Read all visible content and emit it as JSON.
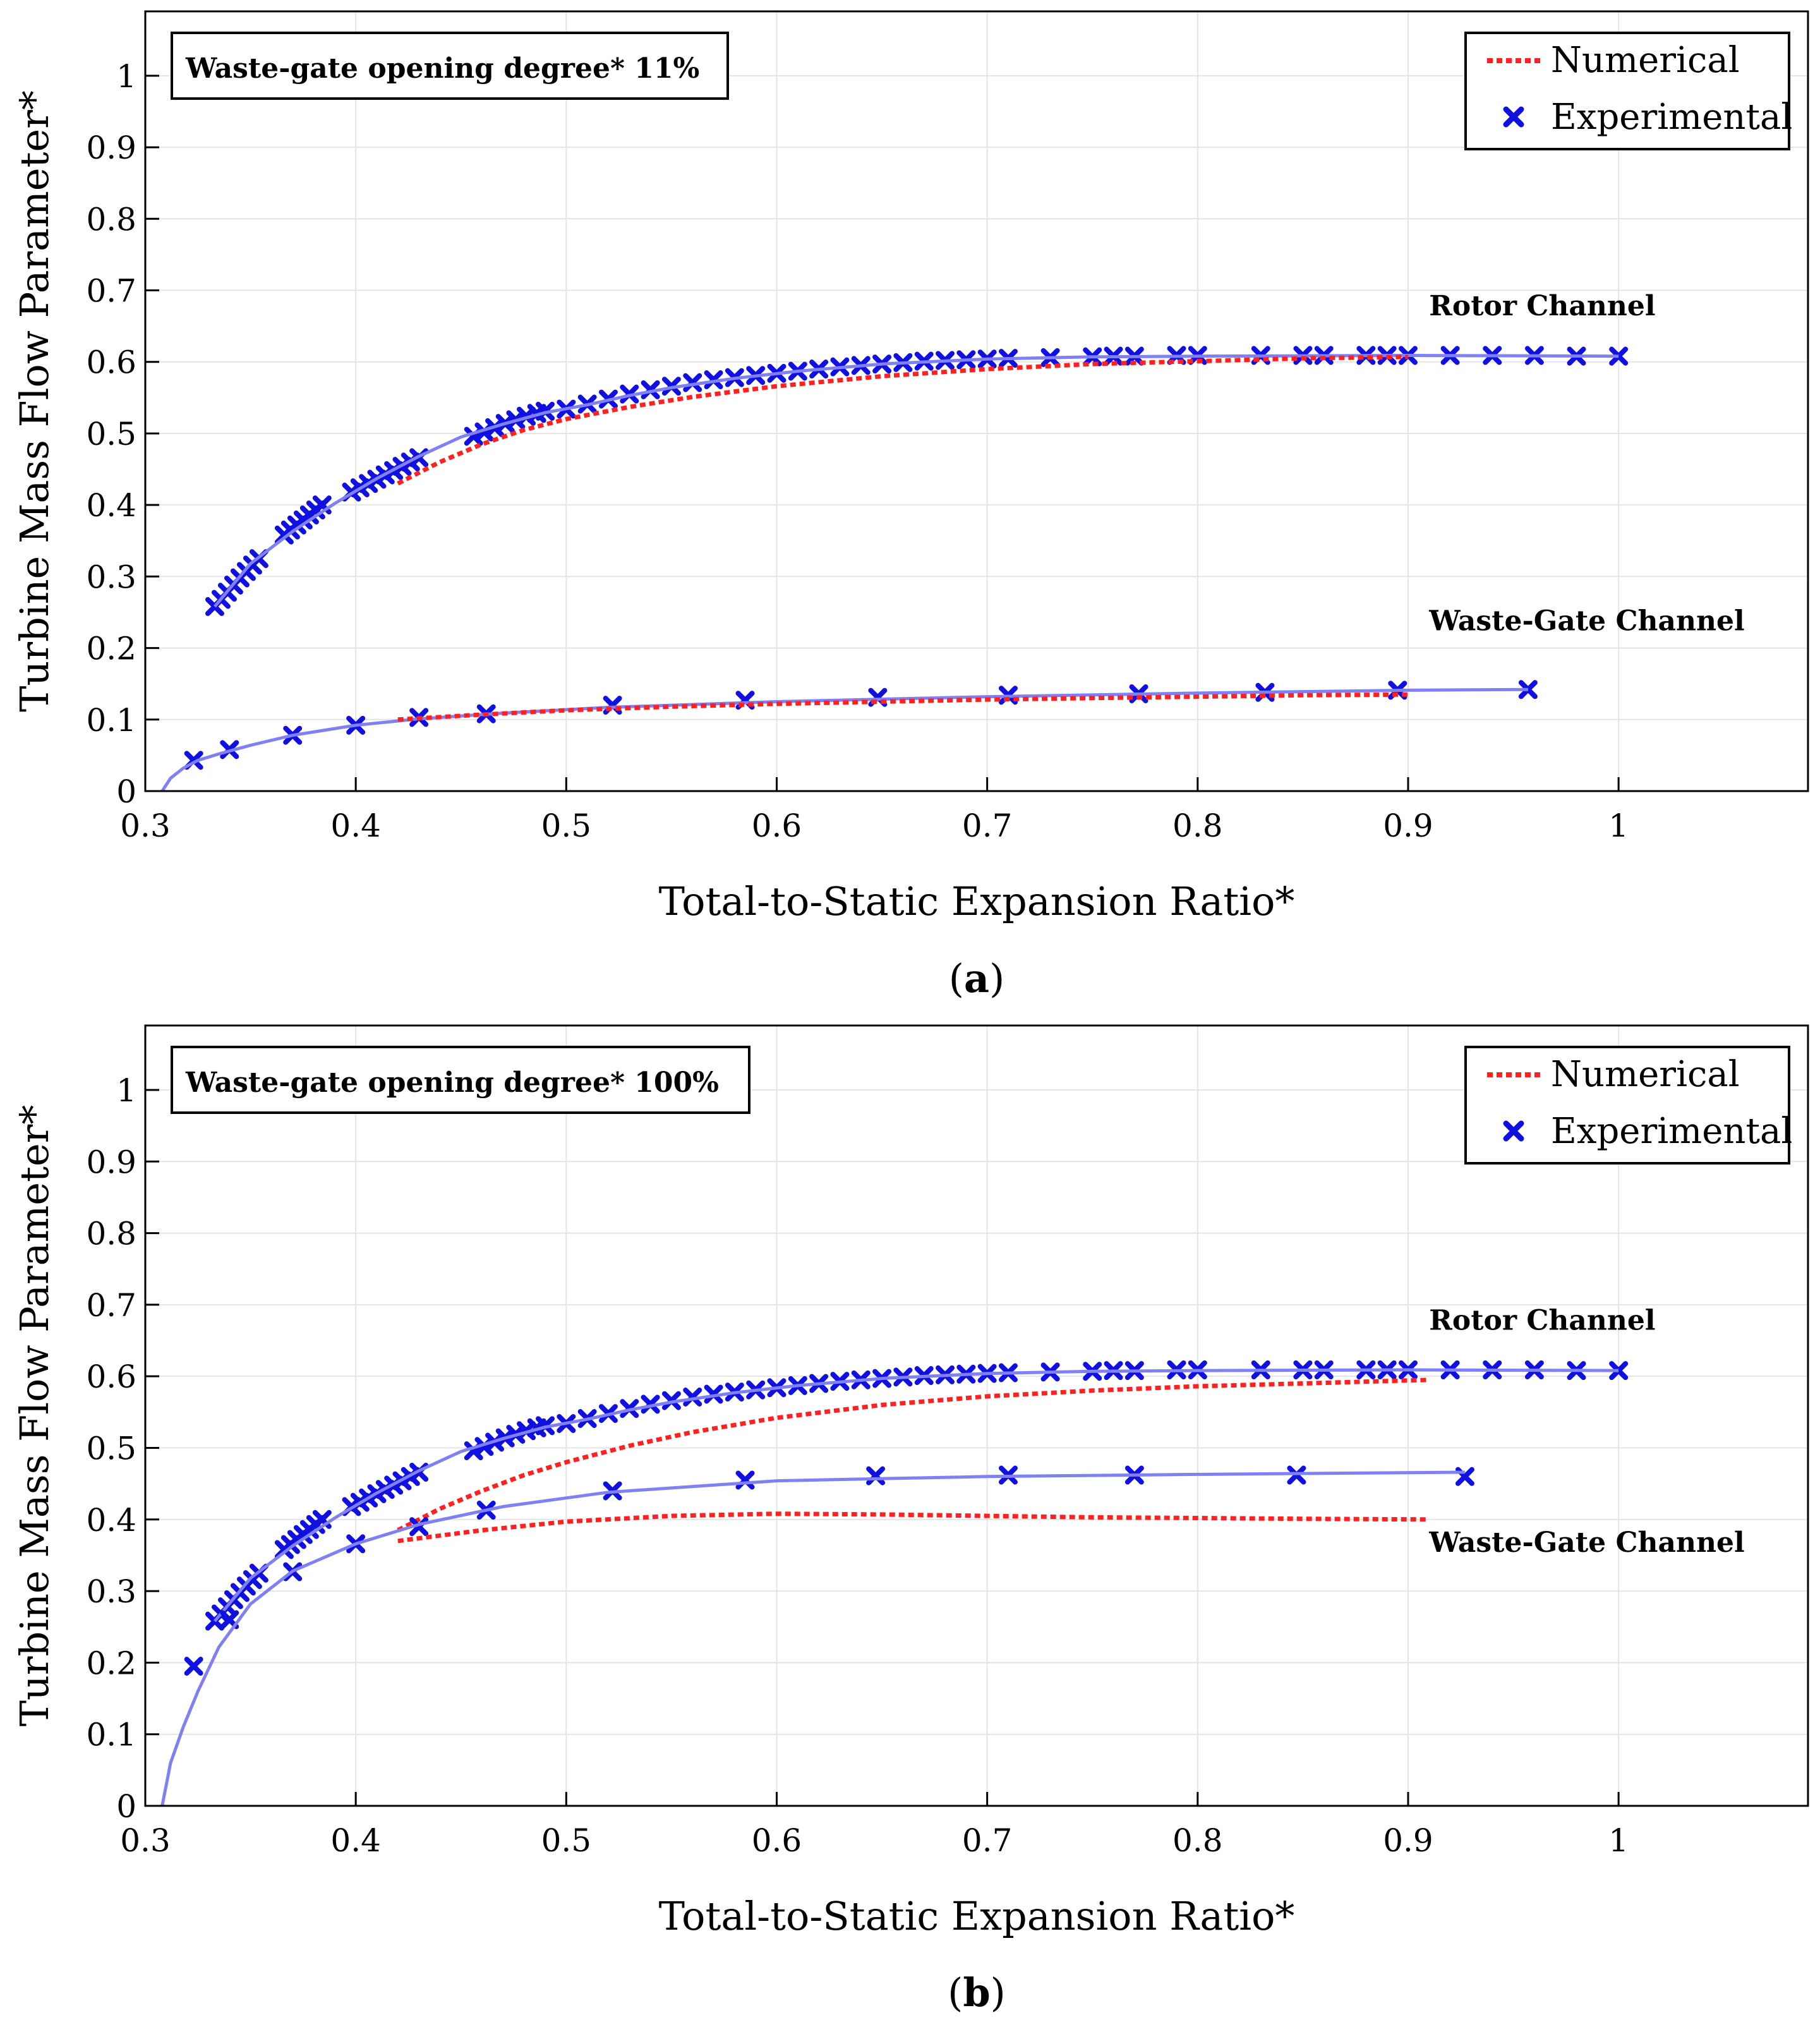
{
  "chart_data": [
    {
      "type": "line",
      "panel": "a",
      "caption": [
        "(",
        "a",
        ")"
      ],
      "annotation_box": "Waste-gate opening degree* 11%",
      "xlabel": "Total-to-Static Expansion Ratio*",
      "ylabel": "Turbine Mass Flow Parameter*",
      "xlim": [
        0.3,
        1.09
      ],
      "ylim": [
        0,
        1.09
      ],
      "xticks": [
        0.3,
        0.4,
        0.5,
        0.6,
        0.7,
        0.8,
        0.9,
        1
      ],
      "yticks": [
        0,
        0.1,
        0.2,
        0.3,
        0.4,
        0.5,
        0.6,
        0.7,
        0.8,
        0.9,
        1
      ],
      "xtick_labels": [
        "0.3",
        "0.4",
        "0.5",
        "0.6",
        "0.7",
        "0.8",
        "0.9",
        "1"
      ],
      "ytick_labels": [
        "0",
        "0.1",
        "0.2",
        "0.3",
        "0.4",
        "0.5",
        "0.6",
        "0.7",
        "0.8",
        "0.9",
        "1"
      ],
      "grid": true,
      "legend": {
        "position": "top-right",
        "entries": [
          "Numerical",
          "Experimental"
        ]
      },
      "channel_labels": [
        {
          "text": "Rotor Channel",
          "x": 0.91,
          "y": 0.665
        },
        {
          "text": "Waste-Gate Channel",
          "x": 0.91,
          "y": 0.225
        }
      ],
      "colors": {
        "numerical": "#ff2020",
        "experimental": "#1010e0",
        "fit": "#8080f5"
      },
      "series": [
        {
          "name": "Rotor Channel Experimental",
          "kind": "experimental",
          "x": [
            0.333,
            0.336,
            0.339,
            0.342,
            0.345,
            0.348,
            0.351,
            0.354,
            0.366,
            0.369,
            0.372,
            0.375,
            0.378,
            0.381,
            0.384,
            0.398,
            0.402,
            0.406,
            0.41,
            0.414,
            0.418,
            0.422,
            0.426,
            0.43,
            0.456,
            0.461,
            0.466,
            0.471,
            0.476,
            0.481,
            0.486,
            0.49,
            0.5,
            0.51,
            0.52,
            0.53,
            0.54,
            0.55,
            0.56,
            0.57,
            0.58,
            0.59,
            0.6,
            0.61,
            0.62,
            0.63,
            0.64,
            0.65,
            0.66,
            0.67,
            0.68,
            0.69,
            0.7,
            0.71,
            0.73,
            0.75,
            0.76,
            0.77,
            0.79,
            0.8,
            0.83,
            0.85,
            0.86,
            0.88,
            0.89,
            0.9,
            0.92,
            0.94,
            0.96,
            0.98,
            1.0
          ],
          "y": [
            0.258,
            0.268,
            0.278,
            0.288,
            0.298,
            0.307,
            0.316,
            0.325,
            0.358,
            0.365,
            0.372,
            0.379,
            0.386,
            0.393,
            0.4,
            0.418,
            0.424,
            0.43,
            0.436,
            0.442,
            0.448,
            0.454,
            0.46,
            0.466,
            0.496,
            0.502,
            0.508,
            0.514,
            0.519,
            0.524,
            0.528,
            0.531,
            0.534,
            0.541,
            0.548,
            0.555,
            0.561,
            0.566,
            0.571,
            0.575,
            0.578,
            0.581,
            0.584,
            0.587,
            0.59,
            0.593,
            0.595,
            0.597,
            0.599,
            0.601,
            0.602,
            0.603,
            0.604,
            0.605,
            0.606,
            0.607,
            0.608,
            0.608,
            0.609,
            0.609,
            0.609,
            0.609,
            0.609,
            0.609,
            0.609,
            0.609,
            0.609,
            0.609,
            0.609,
            0.608,
            0.608
          ]
        },
        {
          "name": "Rotor Channel Fit",
          "kind": "fit",
          "x": [
            0.333,
            0.35,
            0.37,
            0.39,
            0.41,
            0.43,
            0.45,
            0.47,
            0.49,
            0.51,
            0.53,
            0.55,
            0.58,
            0.61,
            0.65,
            0.7,
            0.75,
            0.8,
            0.9,
            1.0
          ],
          "y": [
            0.258,
            0.318,
            0.363,
            0.402,
            0.437,
            0.468,
            0.495,
            0.513,
            0.529,
            0.54,
            0.553,
            0.564,
            0.577,
            0.587,
            0.597,
            0.604,
            0.607,
            0.608,
            0.609,
            0.608
          ]
        },
        {
          "name": "Rotor Channel Numerical",
          "kind": "numerical",
          "x": [
            0.42,
            0.44,
            0.46,
            0.48,
            0.5,
            0.53,
            0.56,
            0.6,
            0.65,
            0.7,
            0.75,
            0.8,
            0.85,
            0.9
          ],
          "y": [
            0.43,
            0.46,
            0.485,
            0.505,
            0.52,
            0.537,
            0.551,
            0.566,
            0.58,
            0.59,
            0.597,
            0.601,
            0.605,
            0.607
          ]
        },
        {
          "name": "Waste-Gate Channel Experimental",
          "kind": "experimental",
          "x": [
            0.323,
            0.34,
            0.37,
            0.4,
            0.43,
            0.462,
            0.522,
            0.585,
            0.648,
            0.71,
            0.772,
            0.832,
            0.895,
            0.957
          ],
          "y": [
            0.043,
            0.058,
            0.078,
            0.092,
            0.103,
            0.108,
            0.12,
            0.127,
            0.131,
            0.134,
            0.136,
            0.138,
            0.141,
            0.142
          ]
        },
        {
          "name": "Waste-Gate Channel Fit",
          "kind": "fit",
          "x": [
            0.308,
            0.312,
            0.318,
            0.325,
            0.335,
            0.35,
            0.37,
            0.4,
            0.43,
            0.47,
            0.52,
            0.6,
            0.7,
            0.8,
            0.9,
            0.957
          ],
          "y": [
            0.0,
            0.018,
            0.032,
            0.043,
            0.052,
            0.064,
            0.078,
            0.092,
            0.101,
            0.109,
            0.117,
            0.125,
            0.132,
            0.137,
            0.141,
            0.142
          ]
        },
        {
          "name": "Waste-Gate Channel Numerical",
          "kind": "numerical",
          "x": [
            0.42,
            0.46,
            0.5,
            0.55,
            0.6,
            0.65,
            0.7,
            0.75,
            0.8,
            0.85,
            0.9
          ],
          "y": [
            0.1,
            0.107,
            0.113,
            0.118,
            0.122,
            0.125,
            0.128,
            0.13,
            0.132,
            0.134,
            0.135
          ]
        }
      ]
    },
    {
      "type": "line",
      "panel": "b",
      "caption": [
        "(",
        "b",
        ")"
      ],
      "annotation_box": "Waste-gate opening degree* 100%",
      "xlabel": "Total-to-Static Expansion Ratio*",
      "ylabel": "Turbine Mass Flow Parameter*",
      "xlim": [
        0.3,
        1.09
      ],
      "ylim": [
        0,
        1.09
      ],
      "xticks": [
        0.3,
        0.4,
        0.5,
        0.6,
        0.7,
        0.8,
        0.9,
        1
      ],
      "yticks": [
        0,
        0.1,
        0.2,
        0.3,
        0.4,
        0.5,
        0.6,
        0.7,
        0.8,
        0.9,
        1
      ],
      "xtick_labels": [
        "0.3",
        "0.4",
        "0.5",
        "0.6",
        "0.7",
        "0.8",
        "0.9",
        "1"
      ],
      "ytick_labels": [
        "0",
        "0.1",
        "0.2",
        "0.3",
        "0.4",
        "0.5",
        "0.6",
        "0.7",
        "0.8",
        "0.9",
        "1"
      ],
      "grid": true,
      "legend": {
        "position": "top-right",
        "entries": [
          "Numerical",
          "Experimental"
        ]
      },
      "channel_labels": [
        {
          "text": "Rotor Channel",
          "x": 0.91,
          "y": 0.665
        },
        {
          "text": "Waste-Gate Channel",
          "x": 0.91,
          "y": 0.355
        }
      ],
      "colors": {
        "numerical": "#ff2020",
        "experimental": "#1010e0",
        "fit": "#8080f5"
      },
      "series": [
        {
          "name": "Rotor Channel Experimental",
          "kind": "experimental",
          "x": [
            0.333,
            0.336,
            0.339,
            0.342,
            0.345,
            0.348,
            0.351,
            0.354,
            0.366,
            0.369,
            0.372,
            0.375,
            0.378,
            0.381,
            0.384,
            0.398,
            0.402,
            0.406,
            0.41,
            0.414,
            0.418,
            0.422,
            0.426,
            0.43,
            0.456,
            0.461,
            0.466,
            0.471,
            0.476,
            0.481,
            0.486,
            0.49,
            0.5,
            0.51,
            0.52,
            0.53,
            0.54,
            0.55,
            0.56,
            0.57,
            0.58,
            0.59,
            0.6,
            0.61,
            0.62,
            0.63,
            0.64,
            0.65,
            0.66,
            0.67,
            0.68,
            0.69,
            0.7,
            0.71,
            0.73,
            0.75,
            0.76,
            0.77,
            0.79,
            0.8,
            0.83,
            0.85,
            0.86,
            0.88,
            0.89,
            0.9,
            0.92,
            0.94,
            0.96,
            0.98,
            1.0
          ],
          "y": [
            0.258,
            0.268,
            0.278,
            0.288,
            0.298,
            0.307,
            0.316,
            0.325,
            0.358,
            0.365,
            0.372,
            0.379,
            0.386,
            0.393,
            0.4,
            0.418,
            0.424,
            0.43,
            0.436,
            0.442,
            0.448,
            0.454,
            0.46,
            0.466,
            0.496,
            0.502,
            0.508,
            0.514,
            0.519,
            0.524,
            0.528,
            0.531,
            0.534,
            0.541,
            0.548,
            0.555,
            0.561,
            0.566,
            0.571,
            0.575,
            0.578,
            0.581,
            0.584,
            0.587,
            0.59,
            0.593,
            0.595,
            0.597,
            0.599,
            0.601,
            0.602,
            0.603,
            0.604,
            0.605,
            0.606,
            0.607,
            0.608,
            0.608,
            0.609,
            0.609,
            0.609,
            0.609,
            0.609,
            0.609,
            0.609,
            0.609,
            0.609,
            0.609,
            0.609,
            0.608,
            0.608
          ]
        },
        {
          "name": "Rotor Channel Fit",
          "kind": "fit",
          "x": [
            0.333,
            0.35,
            0.37,
            0.39,
            0.41,
            0.43,
            0.45,
            0.47,
            0.49,
            0.51,
            0.53,
            0.55,
            0.58,
            0.61,
            0.65,
            0.7,
            0.75,
            0.8,
            0.9,
            1.0
          ],
          "y": [
            0.258,
            0.318,
            0.363,
            0.402,
            0.437,
            0.468,
            0.495,
            0.513,
            0.529,
            0.54,
            0.553,
            0.564,
            0.577,
            0.587,
            0.597,
            0.604,
            0.607,
            0.608,
            0.609,
            0.608
          ]
        },
        {
          "name": "Rotor Channel Numerical",
          "kind": "numerical",
          "x": [
            0.42,
            0.44,
            0.46,
            0.48,
            0.5,
            0.53,
            0.56,
            0.6,
            0.65,
            0.7,
            0.75,
            0.8,
            0.85,
            0.91
          ],
          "y": [
            0.385,
            0.415,
            0.44,
            0.462,
            0.48,
            0.503,
            0.522,
            0.542,
            0.56,
            0.572,
            0.58,
            0.586,
            0.59,
            0.595
          ]
        },
        {
          "name": "Waste-Gate Channel Experimental",
          "kind": "experimental",
          "x": [
            0.323,
            0.34,
            0.37,
            0.4,
            0.43,
            0.462,
            0.522,
            0.585,
            0.647,
            0.71,
            0.77,
            0.847,
            0.927
          ],
          "y": [
            0.195,
            0.26,
            0.327,
            0.366,
            0.39,
            0.413,
            0.44,
            0.455,
            0.461,
            0.462,
            0.462,
            0.462,
            0.46
          ]
        },
        {
          "name": "Waste-Gate Channel Fit",
          "kind": "fit",
          "x": [
            0.308,
            0.312,
            0.318,
            0.325,
            0.335,
            0.35,
            0.37,
            0.4,
            0.43,
            0.47,
            0.52,
            0.6,
            0.7,
            0.8,
            0.927
          ],
          "y": [
            0.0,
            0.06,
            0.11,
            0.16,
            0.222,
            0.282,
            0.328,
            0.366,
            0.393,
            0.418,
            0.438,
            0.454,
            0.46,
            0.463,
            0.466
          ]
        },
        {
          "name": "Waste-Gate Channel Numerical",
          "kind": "numerical",
          "x": [
            0.42,
            0.46,
            0.5,
            0.55,
            0.6,
            0.65,
            0.7,
            0.75,
            0.8,
            0.85,
            0.91
          ],
          "y": [
            0.37,
            0.385,
            0.397,
            0.405,
            0.408,
            0.407,
            0.405,
            0.403,
            0.402,
            0.401,
            0.4
          ]
        }
      ]
    }
  ]
}
